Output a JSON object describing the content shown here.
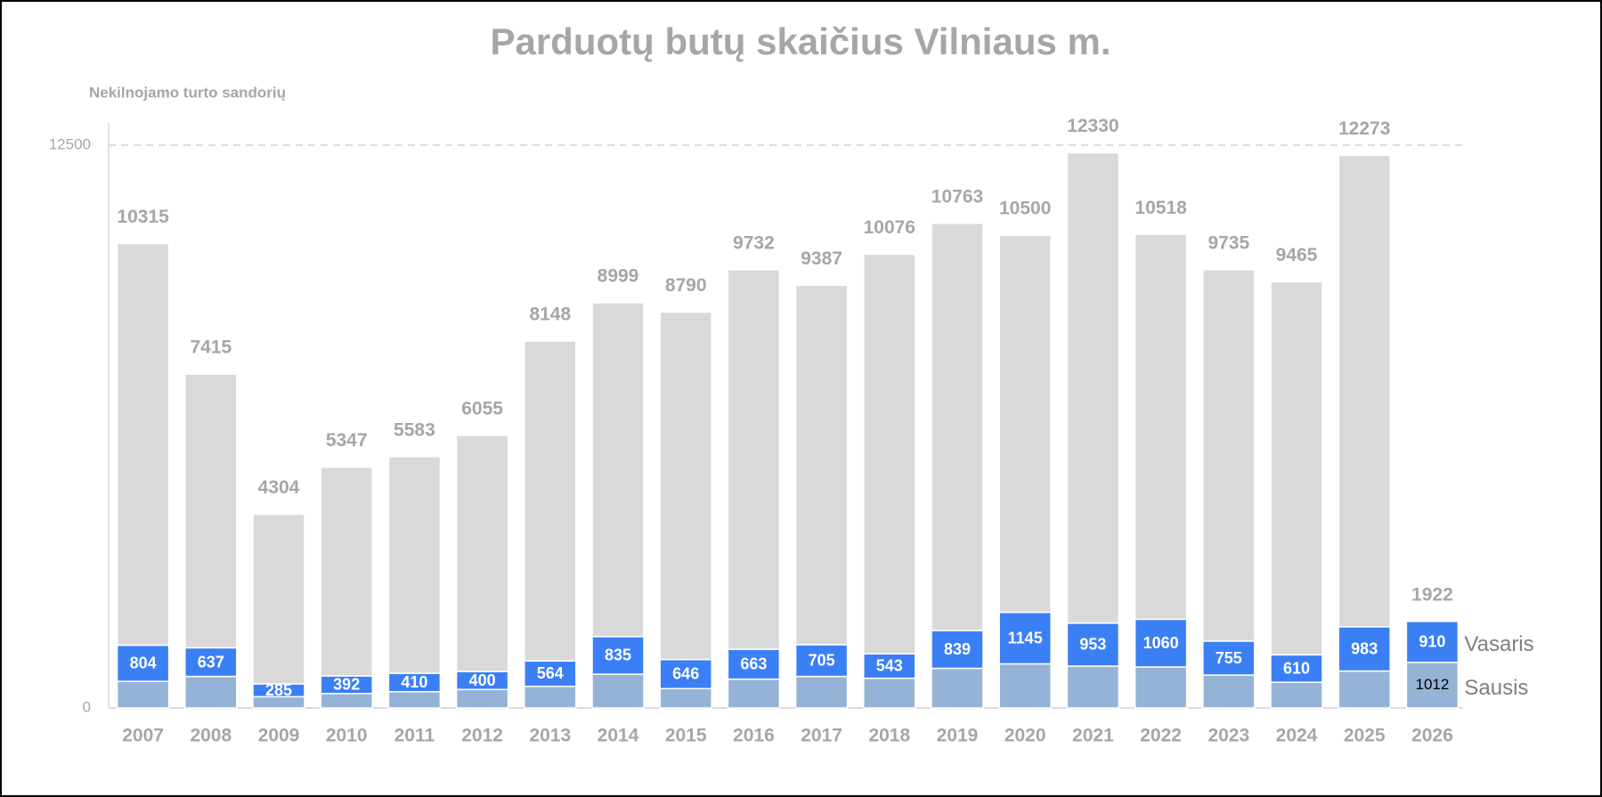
{
  "chart_data": {
    "type": "bar",
    "stacked": true,
    "title": "Parduotų butų skaičius Vilniaus m.",
    "y_label": "Nekilnojamo turto sandorių",
    "categories": [
      "2007",
      "2008",
      "2009",
      "2010",
      "2011",
      "2012",
      "2013",
      "2014",
      "2015",
      "2016",
      "2017",
      "2018",
      "2019",
      "2020",
      "2021",
      "2022",
      "2023",
      "2024",
      "2025",
      "2026"
    ],
    "series": [
      {
        "name": "Sausis",
        "color": "#95b3d7",
        "values": [
          590,
          700,
          250,
          320,
          360,
          410,
          480,
          750,
          430,
          640,
          700,
          660,
          880,
          980,
          930,
          910,
          730,
          570,
          820,
          1012
        ],
        "value_labels": [
          null,
          null,
          null,
          null,
          null,
          null,
          null,
          null,
          null,
          null,
          null,
          null,
          null,
          null,
          null,
          null,
          null,
          null,
          null,
          "1012"
        ]
      },
      {
        "name": "Vasaris",
        "color": "#3b7ff5",
        "values": [
          804,
          637,
          285,
          392,
          410,
          400,
          564,
          835,
          646,
          663,
          705,
          543,
          839,
          1145,
          953,
          1060,
          755,
          610,
          983,
          910
        ]
      },
      {
        "color": "#d9d9d9",
        "values": [
          8921,
          6078,
          3769,
          4635,
          4813,
          5245,
          7104,
          7414,
          7714,
          8429,
          7982,
          8873,
          9044,
          8375,
          10447,
          8548,
          8250,
          8285,
          10470,
          0
        ]
      }
    ],
    "totals": [
      10315,
      7415,
      4304,
      5347,
      5583,
      6055,
      8148,
      8999,
      8790,
      9732,
      9387,
      10076,
      10763,
      10500,
      12330,
      10518,
      9735,
      9465,
      12273,
      1922
    ],
    "ylim": [
      0,
      12500
    ],
    "yticks": [
      0,
      12500
    ],
    "grid": true
  }
}
